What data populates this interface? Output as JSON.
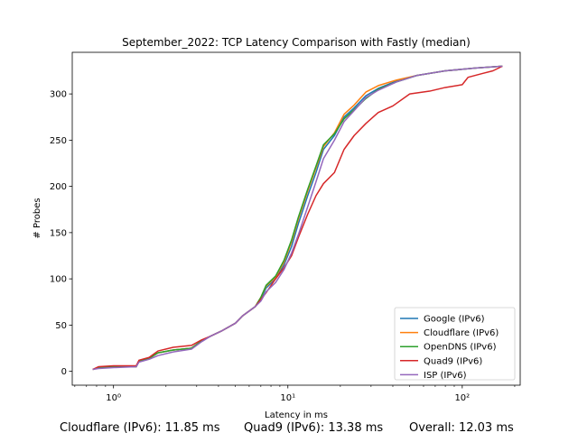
{
  "chart_data": {
    "type": "line",
    "title": "September_2022: TCP Latency Comparison with Fastly (median)",
    "xlabel": "Latency in ms",
    "ylabel": "# Probes",
    "xscale": "log",
    "xlim": [
      0.58,
      215
    ],
    "ylim": [
      -15,
      345
    ],
    "xticks": [
      {
        "value": 1,
        "label": "10⁰"
      },
      {
        "value": 10,
        "label": "10¹"
      },
      {
        "value": 100,
        "label": "10²"
      }
    ],
    "yticks": [
      0,
      50,
      100,
      150,
      200,
      250,
      300
    ],
    "grid": false,
    "legend_position": "lower-right",
    "series": [
      {
        "name": "Google (IPv6)",
        "color": "#1f77b4",
        "points": [
          [
            0.76,
            2
          ],
          [
            0.82,
            4
          ],
          [
            1.0,
            5
          ],
          [
            1.35,
            5
          ],
          [
            1.4,
            11
          ],
          [
            1.6,
            14
          ],
          [
            1.8,
            20
          ],
          [
            2.2,
            23
          ],
          [
            2.8,
            25
          ],
          [
            3.2,
            33
          ],
          [
            3.6,
            38
          ],
          [
            4.2,
            44
          ],
          [
            5.0,
            52
          ],
          [
            5.5,
            60
          ],
          [
            6.5,
            70
          ],
          [
            7.0,
            78
          ],
          [
            7.5,
            90
          ],
          [
            8.5,
            100
          ],
          [
            9.5,
            115
          ],
          [
            10.5,
            135
          ],
          [
            11.5,
            160
          ],
          [
            13.0,
            190
          ],
          [
            14.5,
            215
          ],
          [
            16.0,
            240
          ],
          [
            18.5,
            255
          ],
          [
            21.0,
            275
          ],
          [
            24.0,
            285
          ],
          [
            28.0,
            298
          ],
          [
            33.0,
            306
          ],
          [
            42.0,
            314
          ],
          [
            55.0,
            320
          ],
          [
            80.0,
            325
          ],
          [
            120.0,
            328
          ],
          [
            170.0,
            330
          ]
        ]
      },
      {
        "name": "Cloudflare (IPv6)",
        "color": "#ff7f0e",
        "points": [
          [
            0.76,
            2
          ],
          [
            0.82,
            4
          ],
          [
            1.0,
            5
          ],
          [
            1.35,
            5
          ],
          [
            1.4,
            11
          ],
          [
            1.6,
            14
          ],
          [
            1.8,
            20
          ],
          [
            2.2,
            23
          ],
          [
            2.8,
            25
          ],
          [
            3.2,
            33
          ],
          [
            3.6,
            38
          ],
          [
            4.2,
            44
          ],
          [
            5.0,
            52
          ],
          [
            5.5,
            60
          ],
          [
            6.5,
            70
          ],
          [
            7.0,
            80
          ],
          [
            7.5,
            92
          ],
          [
            8.5,
            102
          ],
          [
            9.5,
            118
          ],
          [
            10.5,
            140
          ],
          [
            11.5,
            165
          ],
          [
            13.0,
            195
          ],
          [
            14.5,
            220
          ],
          [
            16.0,
            243
          ],
          [
            18.5,
            258
          ],
          [
            21.0,
            278
          ],
          [
            24.0,
            288
          ],
          [
            28.0,
            302
          ],
          [
            33.0,
            309
          ],
          [
            42.0,
            315
          ],
          [
            55.0,
            320
          ],
          [
            80.0,
            325
          ],
          [
            120.0,
            328
          ],
          [
            170.0,
            330
          ]
        ]
      },
      {
        "name": "OpenDNS (IPv6)",
        "color": "#2ca02c",
        "points": [
          [
            0.76,
            2
          ],
          [
            0.82,
            4
          ],
          [
            1.0,
            5
          ],
          [
            1.35,
            5
          ],
          [
            1.4,
            11
          ],
          [
            1.6,
            14
          ],
          [
            1.8,
            20
          ],
          [
            2.2,
            23
          ],
          [
            2.8,
            25
          ],
          [
            3.2,
            33
          ],
          [
            3.6,
            38
          ],
          [
            4.2,
            44
          ],
          [
            5.0,
            52
          ],
          [
            5.5,
            60
          ],
          [
            6.5,
            70
          ],
          [
            7.0,
            80
          ],
          [
            7.5,
            93
          ],
          [
            8.5,
            103
          ],
          [
            9.5,
            120
          ],
          [
            10.5,
            142
          ],
          [
            11.5,
            167
          ],
          [
            13.0,
            197
          ],
          [
            14.5,
            222
          ],
          [
            16.0,
            245
          ],
          [
            18.5,
            257
          ],
          [
            21.0,
            273
          ],
          [
            24.0,
            283
          ],
          [
            28.0,
            295
          ],
          [
            33.0,
            305
          ],
          [
            42.0,
            313
          ],
          [
            55.0,
            320
          ],
          [
            80.0,
            325
          ],
          [
            120.0,
            328
          ],
          [
            170.0,
            330
          ]
        ]
      },
      {
        "name": "Quad9 (IPv6)",
        "color": "#d62728",
        "points": [
          [
            0.76,
            2
          ],
          [
            0.82,
            5
          ],
          [
            1.0,
            6
          ],
          [
            1.35,
            6
          ],
          [
            1.4,
            12
          ],
          [
            1.6,
            15
          ],
          [
            1.8,
            22
          ],
          [
            2.2,
            26
          ],
          [
            2.8,
            28
          ],
          [
            3.2,
            34
          ],
          [
            3.6,
            38
          ],
          [
            4.2,
            44
          ],
          [
            5.0,
            52
          ],
          [
            5.5,
            60
          ],
          [
            6.5,
            70
          ],
          [
            7.5,
            85
          ],
          [
            8.5,
            100
          ],
          [
            9.5,
            112
          ],
          [
            10.5,
            125
          ],
          [
            11.5,
            145
          ],
          [
            13.0,
            170
          ],
          [
            14.5,
            190
          ],
          [
            16.0,
            203
          ],
          [
            18.5,
            215
          ],
          [
            21.0,
            240
          ],
          [
            24.0,
            255
          ],
          [
            28.0,
            268
          ],
          [
            33.0,
            280
          ],
          [
            40.0,
            287
          ],
          [
            50.0,
            300
          ],
          [
            65.0,
            303
          ],
          [
            80.0,
            307
          ],
          [
            100.0,
            310
          ],
          [
            108.0,
            318
          ],
          [
            130.0,
            322
          ],
          [
            150.0,
            325
          ],
          [
            170.0,
            330
          ]
        ]
      },
      {
        "name": "ISP (IPv6)",
        "color": "#9467bd",
        "points": [
          [
            0.76,
            2
          ],
          [
            0.82,
            3
          ],
          [
            1.0,
            4
          ],
          [
            1.35,
            5
          ],
          [
            1.4,
            10
          ],
          [
            1.6,
            13
          ],
          [
            1.8,
            17
          ],
          [
            2.2,
            21
          ],
          [
            2.8,
            24
          ],
          [
            3.2,
            32
          ],
          [
            3.6,
            38
          ],
          [
            4.2,
            44
          ],
          [
            5.0,
            52
          ],
          [
            5.5,
            60
          ],
          [
            6.5,
            70
          ],
          [
            7.0,
            76
          ],
          [
            7.5,
            86
          ],
          [
            8.5,
            96
          ],
          [
            9.5,
            110
          ],
          [
            10.5,
            128
          ],
          [
            11.5,
            148
          ],
          [
            13.0,
            178
          ],
          [
            14.5,
            205
          ],
          [
            16.0,
            230
          ],
          [
            18.5,
            250
          ],
          [
            21.0,
            270
          ],
          [
            24.0,
            282
          ],
          [
            28.0,
            296
          ],
          [
            33.0,
            304
          ],
          [
            42.0,
            313
          ],
          [
            55.0,
            320
          ],
          [
            80.0,
            325
          ],
          [
            120.0,
            328
          ],
          [
            170.0,
            330
          ]
        ]
      }
    ]
  },
  "footer": {
    "cloudflare": "Cloudflare (IPv6): 11.85 ms",
    "quad9": "Quad9 (IPv6): 13.38 ms",
    "overall": "Overall: 12.03 ms"
  }
}
